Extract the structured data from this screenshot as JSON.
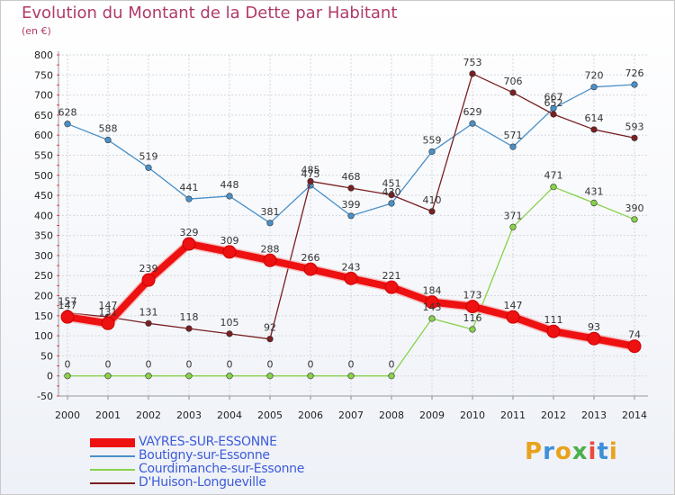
{
  "header": {
    "title": "Evolution du Montant de la Dette par Habitant",
    "unit": "(en €)"
  },
  "logo": {
    "text": "Proxiti",
    "colors": [
      "#e8a21b",
      "#3f8fd8",
      "#e8a21b",
      "#4bb04b",
      "#e84c3d",
      "#3f8fd8",
      "#e8a21b"
    ]
  },
  "chart_data": {
    "type": "line",
    "x": [
      "2000",
      "2001",
      "2002",
      "2003",
      "2004",
      "2005",
      "2006",
      "2007",
      "2008",
      "2009",
      "2010",
      "2011",
      "2012",
      "2013",
      "2014"
    ],
    "ylim": [
      -50,
      800
    ],
    "yticks": [
      "-50",
      "0",
      "50",
      "100",
      "150",
      "200",
      "250",
      "300",
      "350",
      "400",
      "450",
      "500",
      "550",
      "600",
      "650",
      "700",
      "750",
      "800"
    ],
    "grid": true,
    "legend_position": "bottom-left",
    "series": [
      {
        "name": "VAYRES-SUR-ESSONNE",
        "color": "#ee1111",
        "values": [
          147,
          131,
          239,
          329,
          309,
          288,
          266,
          243,
          221,
          184,
          173,
          147,
          111,
          93,
          74
        ],
        "labels": [
          "147",
          "131",
          "239",
          "329",
          "309",
          "288",
          "266",
          "243",
          "221",
          "184",
          "173",
          "147",
          "111",
          "93",
          "74"
        ]
      },
      {
        "name": "Boutigny-sur-Essonne",
        "color": "#4a90c8",
        "values": [
          628,
          588,
          519,
          441,
          448,
          381,
          475,
          399,
          430,
          559,
          629,
          571,
          667,
          720,
          726
        ],
        "labels": [
          "628",
          "588",
          "519",
          "441",
          "448",
          "381",
          "475",
          "399",
          "430",
          "559",
          "629",
          "571",
          "667",
          "720",
          "726"
        ]
      },
      {
        "name": "Courdimanche-sur-Essonne",
        "color": "#88d24a",
        "values": [
          0,
          0,
          0,
          0,
          0,
          0,
          0,
          0,
          0,
          143,
          116,
          371,
          471,
          431,
          390
        ],
        "labels": [
          "0",
          "0",
          "0",
          "0",
          "0",
          "0",
          "0",
          "0",
          "0",
          "143",
          "116",
          "371",
          "471",
          "431",
          "390"
        ]
      },
      {
        "name": "D'Huison-Longueville",
        "color": "#7a1f22",
        "values": [
          157,
          147,
          131,
          118,
          105,
          92,
          485,
          468,
          451,
          410,
          753,
          706,
          652,
          614,
          593
        ],
        "labels": [
          "157",
          "147",
          "131",
          "118",
          "105",
          "92",
          "485",
          "468",
          "451",
          "410",
          "753",
          "706",
          "652",
          "614",
          "593"
        ]
      }
    ]
  }
}
